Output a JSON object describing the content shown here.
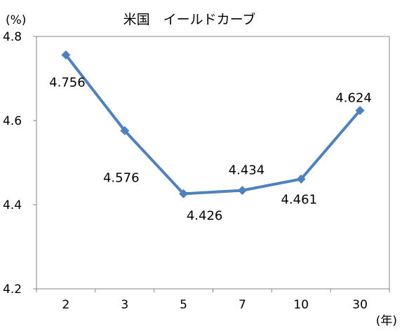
{
  "chart_data": {
    "type": "line",
    "title": "米国　イールドカーブ",
    "ylabel": "(%)",
    "xlabel": "(年)",
    "categories": [
      "2",
      "3",
      "5",
      "7",
      "10",
      "30"
    ],
    "series": [
      {
        "values": [
          4.756,
          4.576,
          4.426,
          4.434,
          4.461,
          4.624
        ]
      }
    ],
    "data_labels": [
      "4.756",
      "4.576",
      "4.426",
      "4.434",
      "4.461",
      "4.624"
    ],
    "ylim": [
      4.2,
      4.8
    ],
    "yticks": [
      4.2,
      4.4,
      4.6,
      4.8
    ],
    "ytick_labels": [
      "4.2",
      "4.4",
      "4.6",
      "4.8"
    ],
    "grid": false,
    "legend": "none",
    "series_color": "#4F81BD",
    "axis_color": "#868686"
  }
}
